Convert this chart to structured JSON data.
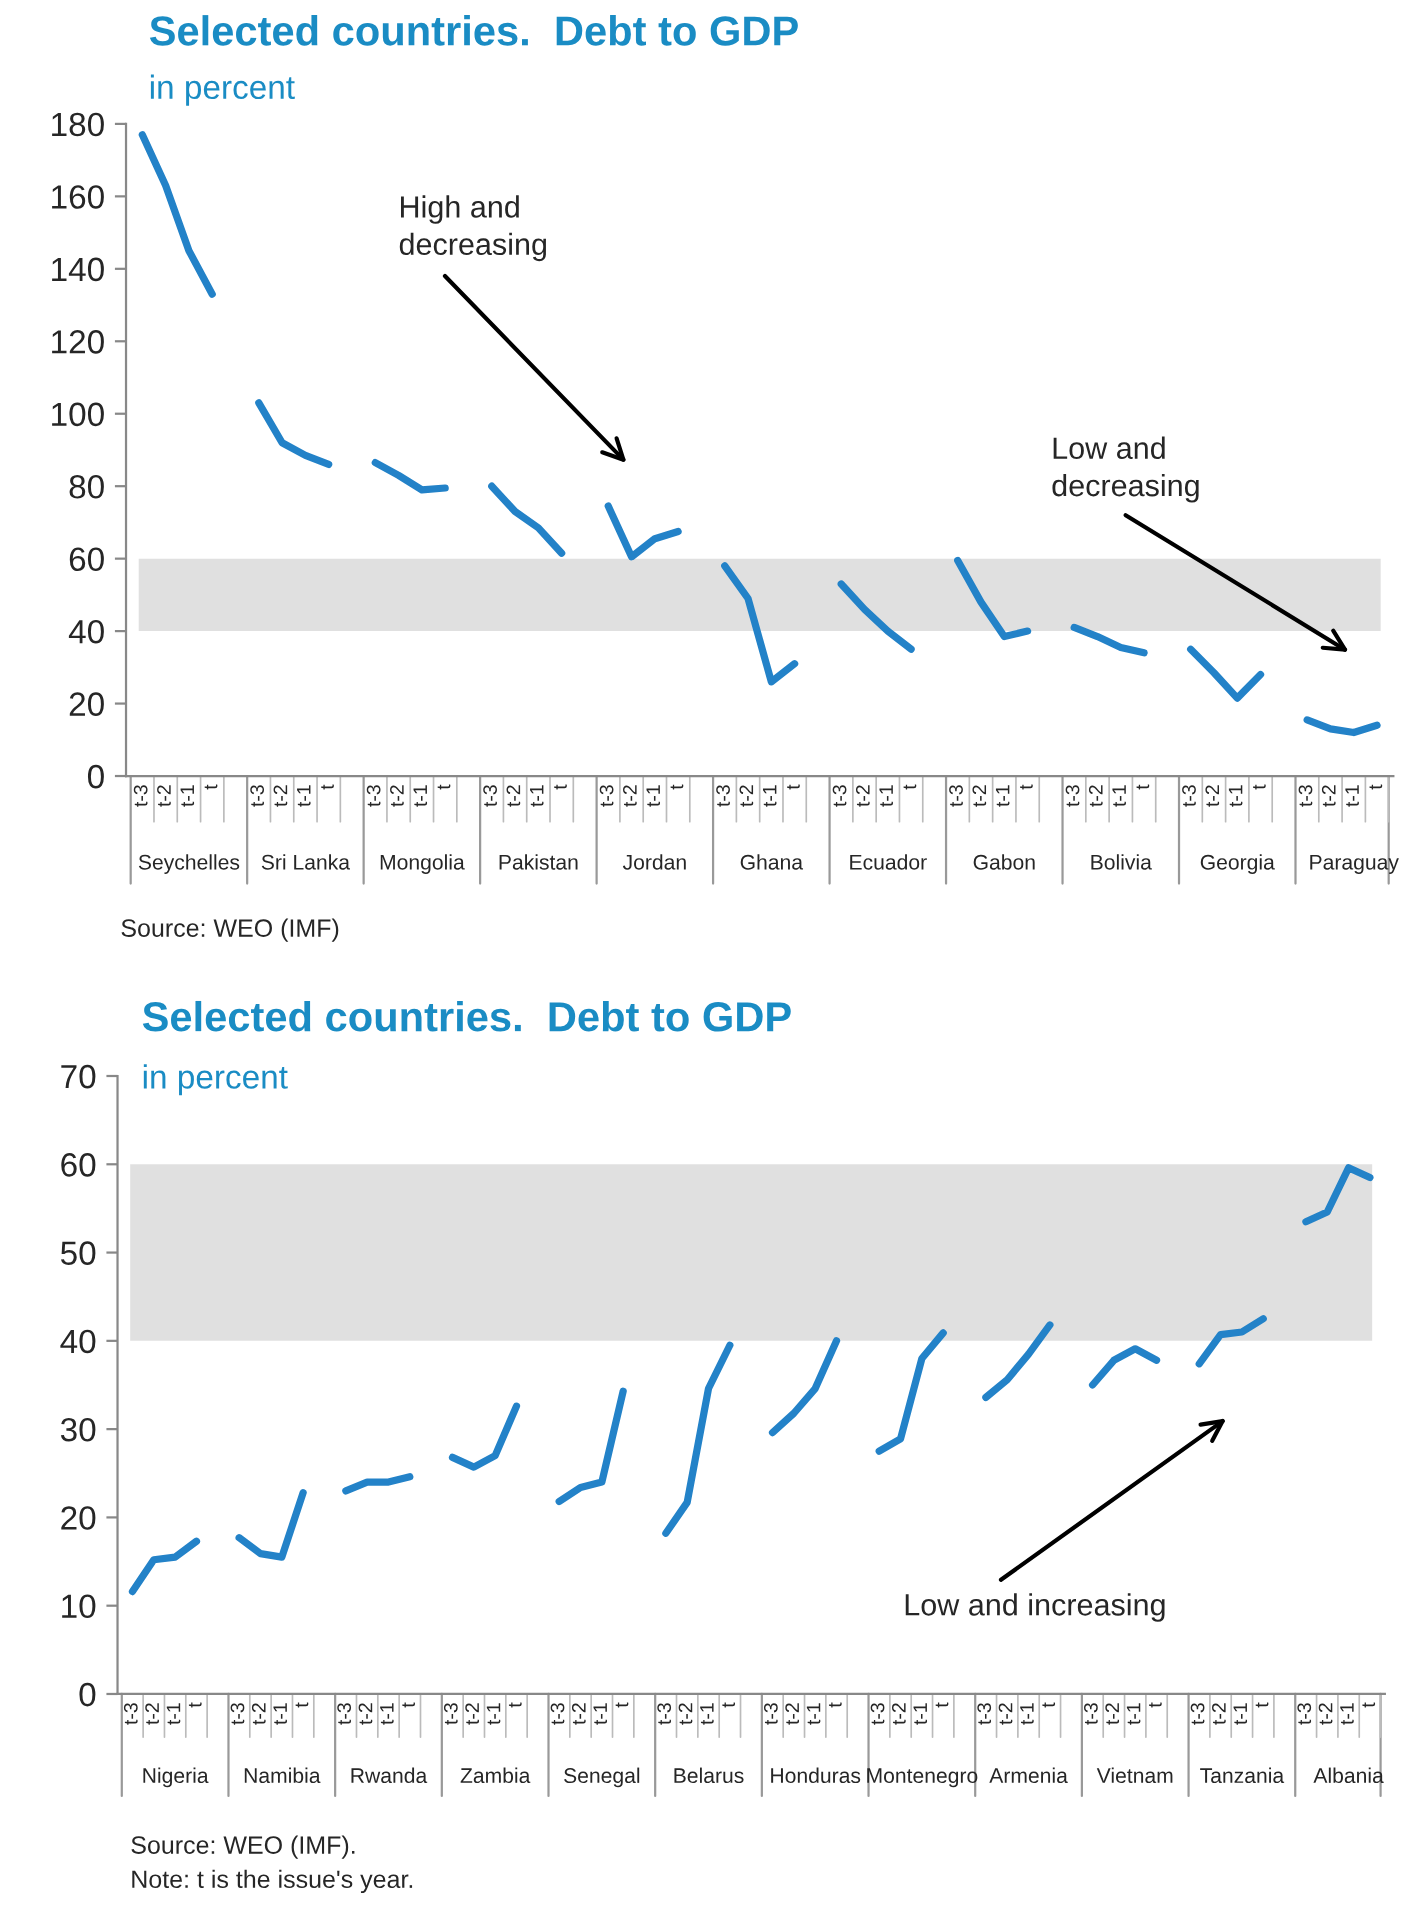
{
  "chart_data": [
    {
      "type": "line",
      "title": "Selected countries.  Debt to GDP",
      "subtitle": "in percent",
      "categories": [
        "t-3",
        "t-2",
        "t-1",
        "t",
        null,
        "t-3",
        "t-2",
        "t-1",
        "t",
        null,
        "t-3",
        "t-2",
        "t-1",
        "t",
        null,
        "t-3",
        "t-2",
        "t-1",
        "t",
        null,
        "t-3",
        "t-2",
        "t-1",
        "t",
        null,
        "t-3",
        "t-2",
        "t-1",
        "t",
        null,
        "t-3",
        "t-2",
        "t-1",
        "t",
        null,
        "t-3",
        "t-2",
        "t-1",
        "t",
        null,
        "t-3",
        "t-2",
        "t-1",
        "t",
        null,
        "t-3",
        "t-2",
        "t-1",
        "t",
        null,
        "t-3",
        "t-2",
        "t-1",
        "t"
      ],
      "series": [
        {
          "color": "#2382c8",
          "values": [
            177,
            163,
            145,
            133,
            null,
            103,
            92,
            88.5,
            86,
            null,
            86.5,
            83,
            79,
            79.5,
            null,
            80,
            73,
            68.5,
            61.5,
            null,
            74.5,
            60.5,
            65.5,
            67.5,
            null,
            58,
            49,
            26,
            31,
            null,
            53,
            46,
            40,
            35,
            null,
            59.5,
            48,
            38.5,
            40,
            null,
            41,
            38.5,
            35.5,
            34,
            null,
            35,
            28.5,
            21.5,
            28,
            null,
            15.5,
            13,
            12,
            14
          ]
        }
      ],
      "ylim": [
        0,
        180
      ],
      "yticks": [
        0,
        20,
        40,
        60,
        80,
        100,
        120,
        140,
        160,
        180
      ],
      "bands": [
        {
          "axis": "y",
          "from": 40,
          "to": 60,
          "color": "#e0e0e0"
        }
      ],
      "line_style": "solid",
      "marker": "none",
      "grid": false,
      "legend": false,
      "annotations": [
        "Seychelles",
        "Sri Lanka",
        "Mongolia",
        "Pakistan",
        "Jordan",
        "Ghana",
        "Ecuador",
        "Gabon",
        "Bolivia",
        "Georgia",
        "Paraguay",
        "High and\ndecreasing",
        "Low and\ndecreasing",
        "Source: WEO (IMF)"
      ]
    },
    {
      "type": "line",
      "title": "Selected countries.  Debt to GDP",
      "subtitle": "in percent",
      "categories": [
        "t-3",
        "t-2",
        "t-1",
        "t",
        null,
        "t-3",
        "t-2",
        "t-1",
        "t",
        null,
        "t-3",
        "t-2",
        "t-1",
        "t",
        null,
        "t-3",
        "t-2",
        "t-1",
        "t",
        null,
        "t-3",
        "t-2",
        "t-1",
        "t",
        null,
        "t-3",
        "t-2",
        "t-1",
        "t",
        null,
        "t-3",
        "t-2",
        "t-1",
        "t",
        null,
        "t-3",
        "t-2",
        "t-1",
        "t",
        null,
        "t-3",
        "t-2",
        "t-1",
        "t",
        null,
        "t-3",
        "t-2",
        "t-1",
        "t",
        null,
        "t-3",
        "t-2",
        "t-1",
        "t",
        null,
        "t-3",
        "t-2",
        "t-1",
        "t"
      ],
      "series": [
        {
          "color": "#2382c8",
          "values": [
            11.6,
            15.2,
            15.5,
            17.3,
            null,
            17.7,
            15.9,
            15.5,
            22.8,
            null,
            23,
            24,
            24,
            24.6,
            null,
            26.8,
            25.7,
            27,
            32.6,
            null,
            21.8,
            23.4,
            24,
            34.3,
            null,
            18.2,
            21.7,
            34.6,
            39.5,
            null,
            29.6,
            31.8,
            34.6,
            40,
            null,
            27.5,
            28.9,
            38,
            40.9,
            null,
            33.6,
            35.6,
            38.5,
            41.8,
            null,
            35,
            37.8,
            39.1,
            37.8,
            null,
            37.4,
            40.7,
            41,
            42.5,
            null,
            53.5,
            54.6,
            59.6,
            58.5
          ]
        }
      ],
      "ylim": [
        0,
        70
      ],
      "yticks": [
        0,
        10,
        20,
        30,
        40,
        50,
        60,
        70
      ],
      "bands": [
        {
          "axis": "y",
          "from": 40,
          "to": 60,
          "color": "#e0e0e0"
        }
      ],
      "line_style": "solid",
      "marker": "none",
      "grid": false,
      "legend": false,
      "annotations": [
        "Nigeria",
        "Namibia",
        "Rwanda",
        "Zambia",
        "Senegal",
        "Belarus",
        "Honduras",
        "Montenegro",
        "Armenia",
        "Vietnam",
        "Tanzania",
        "Albania",
        "Low and increasing",
        "Source: WEO (IMF).\nNote: t is the issue's year."
      ]
    }
  ]
}
